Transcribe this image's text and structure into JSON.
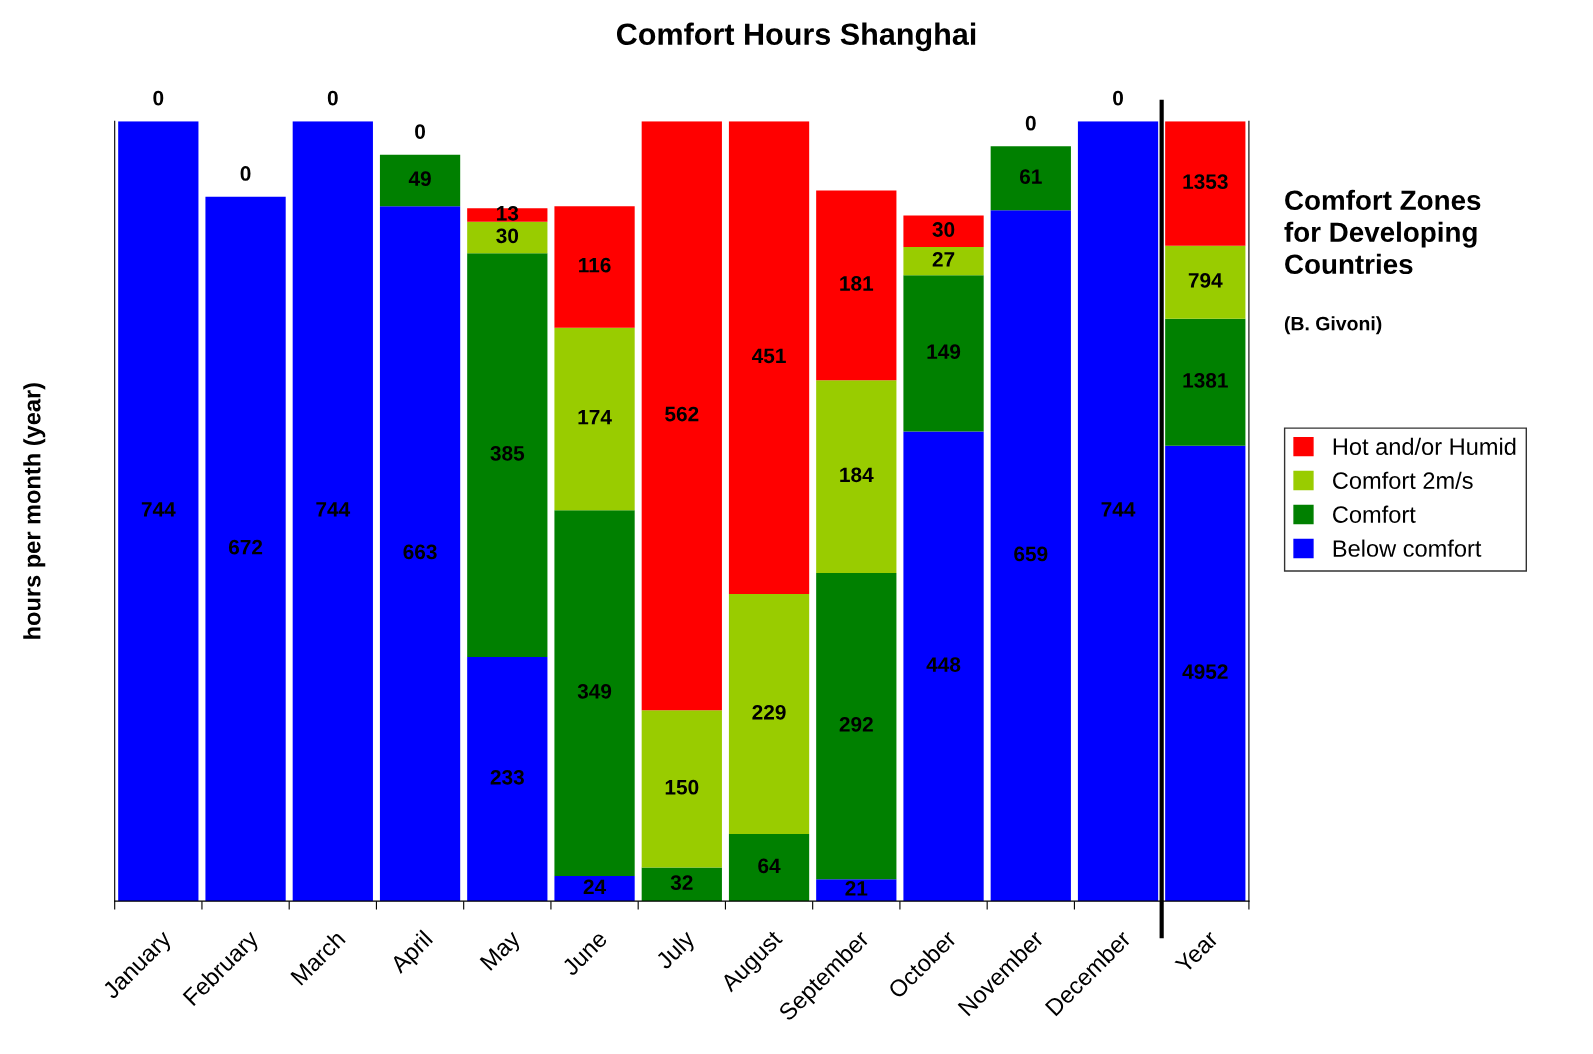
{
  "chart_data": [
    {
      "type": "bar",
      "title": "Comfort Hours Shanghai",
      "ylabel": "hours per month (year)",
      "stacked": true,
      "grid": false,
      "ylim": [
        0,
        744
      ],
      "tick_labels": "x",
      "legend": "right",
      "categories": [
        "January",
        "February",
        "March",
        "April",
        "May",
        "June",
        "July",
        "August",
        "September",
        "October",
        "November",
        "December"
      ],
      "series": [
        {
          "name": "Below comfort",
          "color": "#0000ff",
          "values": [
            744,
            672,
            744,
            663,
            233,
            24,
            0,
            0,
            21,
            448,
            659,
            744
          ],
          "value_labels": [
            "744",
            "672",
            "744",
            "663",
            "233",
            "24",
            null,
            null,
            "21",
            "448",
            "659",
            "744"
          ]
        },
        {
          "name": "Comfort",
          "color": "#008000",
          "values": [
            null,
            null,
            null,
            49,
            385,
            349,
            32,
            64,
            292,
            149,
            61,
            null
          ],
          "value_labels": [
            null,
            null,
            null,
            "49",
            "385",
            "349",
            "32",
            "64",
            "292",
            "149",
            "61",
            null
          ]
        },
        {
          "name": "Comfort 2m/s",
          "color": "#99cc00",
          "values": [
            null,
            null,
            null,
            null,
            30,
            174,
            150,
            229,
            184,
            27,
            null,
            null
          ],
          "value_labels": [
            null,
            null,
            null,
            null,
            "30",
            "174",
            "150",
            "229",
            "184",
            "27",
            null,
            null
          ]
        },
        {
          "name": "Hot and/or Humid",
          "color": "#ff0000",
          "values": [
            0,
            0,
            0,
            0,
            13,
            116,
            562,
            451,
            181,
            30,
            0,
            0
          ],
          "value_labels": [
            "0",
            "0",
            "0",
            "0",
            "13",
            "116",
            "562",
            "451",
            "181",
            "30",
            "0",
            "0"
          ]
        }
      ]
    },
    {
      "type": "bar",
      "stacked": true,
      "grid": false,
      "ylim": [
        0,
        8480
      ],
      "tick_labels": "x",
      "data_labels": true,
      "categories": [
        "Year"
      ],
      "series": [
        {
          "color": "#0000ff",
          "values": [
            4952
          ]
        },
        {
          "color": "#008000",
          "values": [
            1381
          ]
        },
        {
          "color": "#99cc00",
          "values": [
            794
          ]
        },
        {
          "color": "#ff0000",
          "values": [
            1353
          ]
        }
      ],
      "annotations": [
        "Comfort Zones\nfor Developing\nCountries",
        "(B. Givoni)"
      ]
    }
  ]
}
